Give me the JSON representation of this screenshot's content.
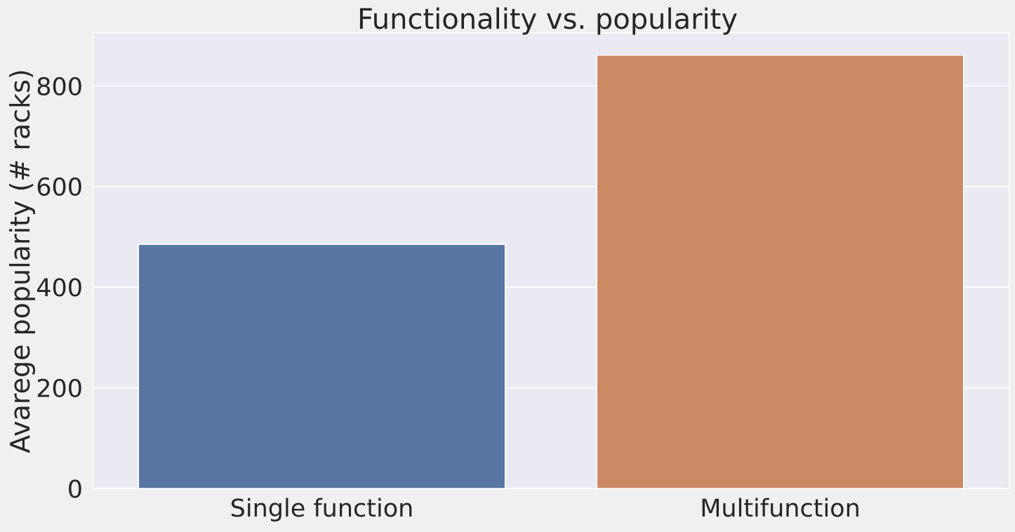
{
  "chart_data": {
    "type": "bar",
    "title": "Functionality vs. popularity",
    "xlabel": "",
    "ylabel": "Avarege popularity (# racks)",
    "categories": [
      "Single function",
      "Multifunction"
    ],
    "values": [
      485,
      861
    ],
    "bar_colors": [
      "#5975a4",
      "#cc8963"
    ],
    "ylim": [
      0,
      905
    ],
    "yticks": [
      0,
      200,
      400,
      600,
      800
    ],
    "grid": true,
    "legend": "none",
    "colors": {
      "page_background": "#f0f0f1",
      "plot_background": "#eaeaf2",
      "grid": "#ffffff",
      "text": "#262626"
    }
  }
}
